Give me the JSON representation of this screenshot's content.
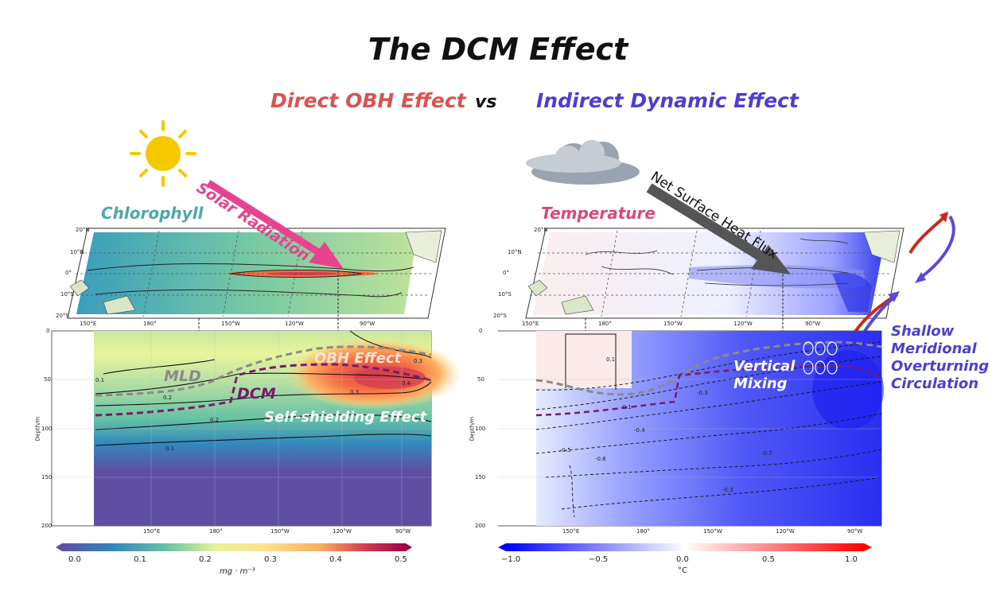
{
  "title": "The DCM Effect",
  "subtitle": {
    "left": "Direct OBH Effect",
    "vs": "vs",
    "right": "Indirect Dynamic Effect"
  },
  "left": {
    "map_label": "Chlorophyll",
    "arrow_label": "Solar Radiation",
    "annotations": {
      "obh": "OBH Effect",
      "mld": "MLD",
      "dcm": "DCM",
      "shield": "Self-shielding Effect"
    },
    "map_lat_ticks": [
      "20°N",
      "10°N",
      "0°",
      "10°S",
      "20°S"
    ],
    "lon_ticks": [
      "150°E",
      "180°",
      "150°W",
      "120°W",
      "90°W"
    ],
    "depth_ticks": [
      "0",
      "50",
      "100",
      "150",
      "200"
    ],
    "depth_label": "Depth/m",
    "contours": [
      "0.1",
      "0.2",
      "0.3",
      "0.4",
      "0.3",
      "0.2",
      "0.1"
    ],
    "colorbar": {
      "ticks": [
        "0.0",
        "0.1",
        "0.2",
        "0.3",
        "0.4",
        "0.5"
      ],
      "unit": "mg · m⁻³"
    }
  },
  "right": {
    "map_label": "Temperature",
    "arrow_label": "Net Surface Heat Flux",
    "annotations": {
      "mixing_1": "Vertical",
      "mixing_2": "Mixing",
      "smoc_1": "Shallow",
      "smoc_2": "Meridional",
      "smoc_3": "Overturning",
      "smoc_4": "Circulation"
    },
    "map_lat_ticks": [
      "20°N",
      "10°N",
      "0°",
      "10°S",
      "20°S"
    ],
    "lon_ticks": [
      "150°E",
      "180°",
      "150°W",
      "120°W",
      "90°W"
    ],
    "depth_ticks": [
      "0",
      "50",
      "100",
      "150",
      "200"
    ],
    "depth_label": "Depth/m",
    "contours": [
      "0.1",
      "-0.1",
      "-0.3",
      "-0.4",
      "-0.5",
      "-0.6",
      "-0.7",
      "-0.3"
    ],
    "colorbar": {
      "ticks": [
        "−1.0",
        "−0.5",
        "0.0",
        "0.5",
        "1.0"
      ],
      "unit": "°C"
    }
  },
  "colors": {
    "obh_red": "#d9534f",
    "dynamic_blue": "#4b3fd0",
    "chl_teal": "#4fa8a3",
    "temp_pink": "#d94a78",
    "solar_pink": "#e8438f",
    "dcm_purple": "#7a1a6a"
  }
}
